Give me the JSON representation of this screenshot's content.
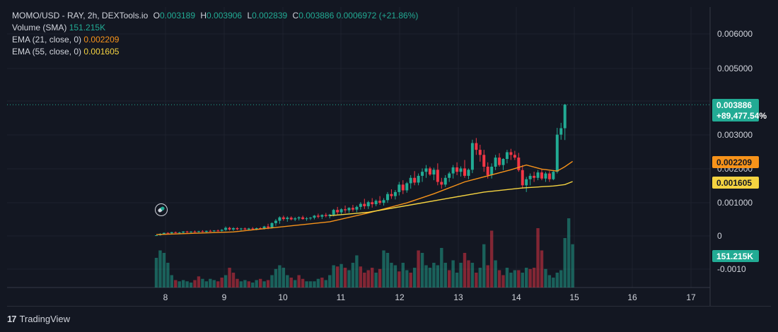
{
  "header": {
    "symbol": "MOMO/USD - RAY, 2h, DEXTools.io",
    "open_key": "O",
    "open": "0.003189",
    "high_key": "H",
    "high": "0.003906",
    "low_key": "L",
    "low": "0.002839",
    "close_key": "C",
    "close": "0.003886",
    "change": "0.0006972 (+21.86%)",
    "volume_label": "Volume (SMA)",
    "volume_value": "151.215K",
    "ema21_label": "EMA (21, close, 0)",
    "ema21_value": "0.002209",
    "ema55_label": "EMA (55, close, 0)",
    "ema55_value": "0.001605"
  },
  "footer": {
    "brand": "TradingView",
    "logo_mark": "17"
  },
  "colors": {
    "background": "#131722",
    "grid": "#1e222d",
    "up": "#22ab94",
    "down": "#f23645",
    "vol_up": "#22ab94",
    "vol_down": "#f23645",
    "ema21": "#f7931a",
    "ema55": "#f5d341",
    "axis_text": "#d1d4dc"
  },
  "chart_data": {
    "type": "candlestick",
    "title": "MOMO/USD - RAY, 2h, DEXTools.io",
    "x_ticks": [
      "8",
      "9",
      "10",
      "11",
      "12",
      "13",
      "14",
      "15",
      "16",
      "17"
    ],
    "price_ticks": [
      "0.006000",
      "0.005000",
      "0.003000",
      "0.002000",
      "0.001000",
      "0"
    ],
    "volume_ticks": [
      "-0.0010"
    ],
    "ylim": [
      0,
      0.0062
    ],
    "last_price_label": "0.003886",
    "last_change_label": "+89,477.54%",
    "ema21_label": "0.002209",
    "ema55_label": "0.001605",
    "volume_label": "151.215K",
    "candles": [
      [
        0.0,
        2e-05,
        0.0,
        2e-05
      ],
      [
        2e-05,
        8e-05,
        1e-05,
        6e-05
      ],
      [
        6e-05,
        0.0001,
        4e-05,
        9e-05
      ],
      [
        9e-05,
        0.00011,
        7e-05,
        8e-05
      ],
      [
        8e-05,
        0.00012,
        6e-05,
        0.00011
      ],
      [
        0.00011,
        0.00013,
        8e-05,
        9e-05
      ],
      [
        9e-05,
        0.00012,
        7e-05,
        0.0001
      ],
      [
        0.0001,
        0.00014,
        8e-05,
        0.00013
      ],
      [
        0.00013,
        0.00015,
        9e-05,
        0.00011
      ],
      [
        0.00011,
        0.00014,
        9e-05,
        0.00013
      ],
      [
        0.00013,
        0.00016,
        0.0001,
        0.00012
      ],
      [
        0.00012,
        0.00015,
        0.0001,
        0.00014
      ],
      [
        0.00014,
        0.00017,
        0.00011,
        0.00012
      ],
      [
        0.00012,
        0.00016,
        0.0001,
        0.00015
      ],
      [
        0.00015,
        0.00018,
        0.00012,
        0.00014
      ],
      [
        0.00014,
        0.00017,
        0.00012,
        0.00016
      ],
      [
        0.00016,
        0.00019,
        0.00013,
        0.00015
      ],
      [
        0.00015,
        0.0002,
        0.00013,
        0.00018
      ],
      [
        0.00018,
        0.00028,
        0.00014,
        0.00024
      ],
      [
        0.00024,
        0.00027,
        0.00016,
        0.00019
      ],
      [
        0.00019,
        0.00026,
        0.00015,
        0.00023
      ],
      [
        0.00023,
        0.00026,
        0.00017,
        0.0002
      ],
      [
        0.0002,
        0.00024,
        0.00016,
        0.00022
      ],
      [
        0.00022,
        0.00025,
        0.00018,
        0.00019
      ],
      [
        0.00019,
        0.00024,
        0.00016,
        0.00022
      ],
      [
        0.00022,
        0.00026,
        0.00018,
        0.0002
      ],
      [
        0.0002,
        0.00025,
        0.00017,
        0.00023
      ],
      [
        0.00023,
        0.00026,
        0.00019,
        0.00021
      ],
      [
        0.00021,
        0.0003,
        0.00019,
        0.00028
      ],
      [
        0.00028,
        0.00036,
        0.0002,
        0.00025
      ],
      [
        0.00025,
        0.0004,
        0.00022,
        0.00038
      ],
      [
        0.00038,
        0.0005,
        0.0003,
        0.00045
      ],
      [
        0.00045,
        0.00058,
        0.00036,
        0.00055
      ],
      [
        0.00055,
        0.0006,
        0.00045,
        0.0005
      ],
      [
        0.0005,
        0.00058,
        0.00042,
        0.00054
      ],
      [
        0.00054,
        0.00058,
        0.00046,
        0.00049
      ],
      [
        0.00049,
        0.00056,
        0.00044,
        0.00052
      ],
      [
        0.00052,
        0.00058,
        0.00046,
        0.00055
      ],
      [
        0.00055,
        0.0006,
        0.00048,
        0.0005
      ],
      [
        0.0005,
        0.00056,
        0.00045,
        0.00052
      ],
      [
        0.00052,
        0.00056,
        0.00047,
        0.00054
      ],
      [
        0.00054,
        0.00062,
        0.00049,
        0.0006
      ],
      [
        0.0006,
        0.00066,
        0.00052,
        0.00057
      ],
      [
        0.00057,
        0.00064,
        0.0005,
        0.00062
      ],
      [
        0.00062,
        0.00068,
        0.00055,
        0.00059
      ],
      [
        0.00059,
        0.00065,
        0.00052,
        0.00063
      ],
      [
        0.00063,
        0.0008,
        0.00058,
        0.00077
      ],
      [
        0.00077,
        0.00086,
        0.00064,
        0.0007
      ],
      [
        0.0007,
        0.00082,
        0.00062,
        0.00079
      ],
      [
        0.00079,
        0.0009,
        0.00068,
        0.00076
      ],
      [
        0.00076,
        0.00085,
        0.00068,
        0.00083
      ],
      [
        0.00083,
        0.00092,
        0.00072,
        0.00078
      ],
      [
        0.00078,
        0.0009,
        0.0007,
        0.00086
      ],
      [
        0.00086,
        0.001,
        0.00078,
        0.00095
      ],
      [
        0.00095,
        0.0011,
        0.0008,
        0.00088
      ],
      [
        0.00088,
        0.00104,
        0.0008,
        0.001
      ],
      [
        0.001,
        0.00112,
        0.00084,
        0.00094
      ],
      [
        0.00094,
        0.00108,
        0.00088,
        0.00104
      ],
      [
        0.00104,
        0.00118,
        0.00092,
        0.00098
      ],
      [
        0.00098,
        0.00112,
        0.0009,
        0.00106
      ],
      [
        0.00106,
        0.0013,
        0.00098,
        0.00124
      ],
      [
        0.00124,
        0.00138,
        0.0011,
        0.00118
      ],
      [
        0.00118,
        0.00136,
        0.00108,
        0.0013
      ],
      [
        0.0013,
        0.0016,
        0.0012,
        0.00152
      ],
      [
        0.00152,
        0.00165,
        0.00124,
        0.00135
      ],
      [
        0.00135,
        0.0016,
        0.00128,
        0.00156
      ],
      [
        0.00156,
        0.0018,
        0.0014,
        0.00172
      ],
      [
        0.00172,
        0.00192,
        0.0015,
        0.00158
      ],
      [
        0.00158,
        0.00185,
        0.0015,
        0.00178
      ],
      [
        0.00178,
        0.002,
        0.0016,
        0.0019
      ],
      [
        0.0019,
        0.0021,
        0.00172,
        0.002
      ],
      [
        0.002,
        0.00205,
        0.00178,
        0.00182
      ],
      [
        0.00182,
        0.00202,
        0.00165,
        0.00196
      ],
      [
        0.00196,
        0.00215,
        0.0015,
        0.0016
      ],
      [
        0.0016,
        0.00172,
        0.0014,
        0.00152
      ],
      [
        0.00152,
        0.0018,
        0.00145,
        0.00172
      ],
      [
        0.00172,
        0.0019,
        0.0016,
        0.00185
      ],
      [
        0.00185,
        0.0021,
        0.0017,
        0.00203
      ],
      [
        0.00203,
        0.00218,
        0.0018,
        0.0019
      ],
      [
        0.0019,
        0.00206,
        0.00176,
        0.002
      ],
      [
        0.002,
        0.00225,
        0.00172,
        0.00178
      ],
      [
        0.00178,
        0.002,
        0.00168,
        0.00196
      ],
      [
        0.00196,
        0.00285,
        0.00186,
        0.00275
      ],
      [
        0.00275,
        0.0029,
        0.0024,
        0.00255
      ],
      [
        0.00255,
        0.0027,
        0.0022,
        0.0024
      ],
      [
        0.0024,
        0.00255,
        0.0019,
        0.00205
      ],
      [
        0.00205,
        0.00218,
        0.0017,
        0.0018
      ],
      [
        0.0018,
        0.00215,
        0.0017,
        0.00205
      ],
      [
        0.00205,
        0.0024,
        0.00195,
        0.00232
      ],
      [
        0.00232,
        0.00245,
        0.00205,
        0.0021
      ],
      [
        0.0021,
        0.0023,
        0.00195,
        0.00228
      ],
      [
        0.00228,
        0.00255,
        0.00215,
        0.00248
      ],
      [
        0.00248,
        0.00258,
        0.00225,
        0.0024
      ],
      [
        0.0024,
        0.00252,
        0.00225,
        0.00232
      ],
      [
        0.00232,
        0.00246,
        0.0019,
        0.00195
      ],
      [
        0.00195,
        0.0021,
        0.0014,
        0.0015
      ],
      [
        0.0015,
        0.00175,
        0.0013,
        0.00168
      ],
      [
        0.00168,
        0.00185,
        0.0015,
        0.00178
      ],
      [
        0.00178,
        0.0019,
        0.0016,
        0.00172
      ],
      [
        0.00172,
        0.00195,
        0.00165,
        0.00188
      ],
      [
        0.00188,
        0.00198,
        0.00165,
        0.0017
      ],
      [
        0.0017,
        0.0019,
        0.0016,
        0.00185
      ],
      [
        0.00185,
        0.00192,
        0.0016,
        0.00168
      ],
      [
        0.00168,
        0.00195,
        0.00165,
        0.0019
      ],
      [
        0.0019,
        0.0032,
        0.00185,
        0.003
      ],
      [
        0.003,
        0.00335,
        0.00285,
        0.00319
      ],
      [
        0.00319,
        0.00391,
        0.00284,
        0.00389
      ]
    ],
    "ema21": [
      [
        0,
        4e-05
      ],
      [
        20,
        0.00012
      ],
      [
        45,
        0.00042
      ],
      [
        55,
        0.00068
      ],
      [
        65,
        0.00098
      ],
      [
        72,
        0.00125
      ],
      [
        80,
        0.0016
      ],
      [
        86,
        0.00178
      ],
      [
        92,
        0.00196
      ],
      [
        96,
        0.0021
      ],
      [
        100,
        0.00198
      ],
      [
        104,
        0.00192
      ],
      [
        106,
        0.00205
      ],
      [
        108,
        0.00221
      ]
    ],
    "ema55": [
      [
        45,
        0.0006
      ],
      [
        55,
        0.0007
      ],
      [
        65,
        0.0009
      ],
      [
        75,
        0.0011
      ],
      [
        85,
        0.0013
      ],
      [
        95,
        0.00142
      ],
      [
        103,
        0.00148
      ],
      [
        106,
        0.00152
      ],
      [
        108,
        0.00161
      ]
    ],
    "volume": [
      [
        0.24,
        1
      ],
      [
        0.3,
        1
      ],
      [
        0.28,
        1
      ],
      [
        0.2,
        1
      ],
      [
        0.1,
        1
      ],
      [
        0.06,
        0
      ],
      [
        0.05,
        1
      ],
      [
        0.06,
        1
      ],
      [
        0.05,
        1
      ],
      [
        0.04,
        1
      ],
      [
        0.06,
        0
      ],
      [
        0.09,
        0
      ],
      [
        0.07,
        1
      ],
      [
        0.05,
        1
      ],
      [
        0.07,
        1
      ],
      [
        0.06,
        1
      ],
      [
        0.05,
        0
      ],
      [
        0.08,
        0
      ],
      [
        0.1,
        1
      ],
      [
        0.16,
        0
      ],
      [
        0.12,
        0
      ],
      [
        0.07,
        0
      ],
      [
        0.05,
        1
      ],
      [
        0.06,
        1
      ],
      [
        0.05,
        0
      ],
      [
        0.04,
        1
      ],
      [
        0.06,
        1
      ],
      [
        0.07,
        0
      ],
      [
        0.05,
        1
      ],
      [
        0.06,
        0
      ],
      [
        0.1,
        1
      ],
      [
        0.15,
        1
      ],
      [
        0.18,
        1
      ],
      [
        0.16,
        1
      ],
      [
        0.1,
        1
      ],
      [
        0.08,
        0
      ],
      [
        0.06,
        1
      ],
      [
        0.1,
        0
      ],
      [
        0.07,
        0
      ],
      [
        0.05,
        1
      ],
      [
        0.05,
        1
      ],
      [
        0.05,
        1
      ],
      [
        0.07,
        1
      ],
      [
        0.08,
        0
      ],
      [
        0.06,
        1
      ],
      [
        0.1,
        1
      ],
      [
        0.18,
        1
      ],
      [
        0.17,
        0
      ],
      [
        0.19,
        1
      ],
      [
        0.16,
        0
      ],
      [
        0.14,
        1
      ],
      [
        0.2,
        1
      ],
      [
        0.26,
        1
      ],
      [
        0.17,
        0
      ],
      [
        0.12,
        0
      ],
      [
        0.14,
        0
      ],
      [
        0.16,
        0
      ],
      [
        0.12,
        1
      ],
      [
        0.15,
        0
      ],
      [
        0.3,
        1
      ],
      [
        0.28,
        1
      ],
      [
        0.2,
        1
      ],
      [
        0.18,
        1
      ],
      [
        0.13,
        0
      ],
      [
        0.2,
        1
      ],
      [
        0.14,
        1
      ],
      [
        0.12,
        0
      ],
      [
        0.16,
        1
      ],
      [
        0.3,
        0
      ],
      [
        0.28,
        1
      ],
      [
        0.18,
        1
      ],
      [
        0.16,
        1
      ],
      [
        0.2,
        1
      ],
      [
        0.18,
        1
      ],
      [
        0.32,
        1
      ],
      [
        0.2,
        1
      ],
      [
        0.14,
        0
      ],
      [
        0.22,
        1
      ],
      [
        0.12,
        1
      ],
      [
        0.2,
        1
      ],
      [
        0.28,
        0
      ],
      [
        0.22,
        0
      ],
      [
        0.2,
        1
      ],
      [
        0.12,
        0
      ],
      [
        0.16,
        1
      ],
      [
        0.35,
        1
      ],
      [
        0.18,
        0
      ],
      [
        0.46,
        0
      ],
      [
        0.22,
        1
      ],
      [
        0.14,
        0
      ],
      [
        0.1,
        0
      ],
      [
        0.16,
        1
      ],
      [
        0.12,
        1
      ],
      [
        0.14,
        1
      ],
      [
        0.14,
        0
      ],
      [
        0.12,
        1
      ],
      [
        0.16,
        1
      ],
      [
        0.15,
        0
      ],
      [
        0.16,
        0
      ],
      [
        0.48,
        0
      ],
      [
        0.3,
        0
      ],
      [
        0.15,
        1
      ],
      [
        0.1,
        1
      ],
      [
        0.08,
        1
      ],
      [
        0.12,
        1
      ],
      [
        0.14,
        1
      ],
      [
        0.4,
        1
      ],
      [
        0.56,
        1
      ],
      [
        0.35,
        1
      ]
    ]
  }
}
